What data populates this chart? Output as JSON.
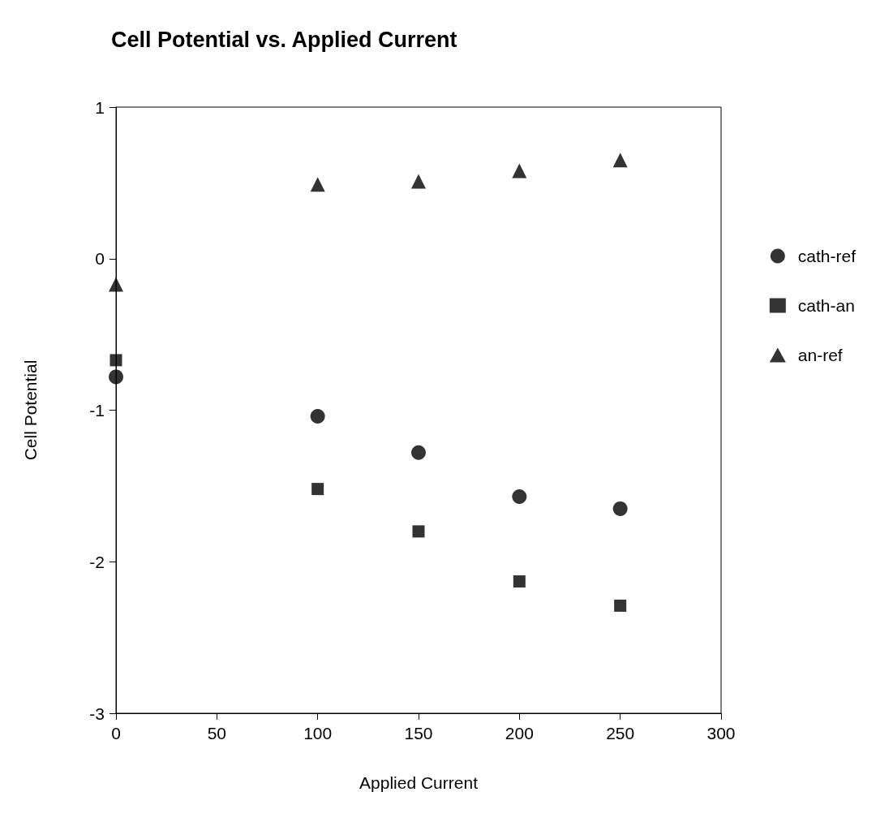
{
  "chart_data": {
    "type": "scatter",
    "title": "Cell Potential vs. Applied Current",
    "xlabel": "Applied Current",
    "ylabel": "Cell Potential",
    "x": [
      0,
      100,
      150,
      200,
      250
    ],
    "series": [
      {
        "name": "cath-ref",
        "color": "#000000",
        "marker": "circle",
        "values": [
          -0.78,
          -1.04,
          -1.28,
          -1.57,
          -1.65
        ]
      },
      {
        "name": "cath-an",
        "color": "#000000",
        "marker": "square",
        "values": [
          -0.67,
          -1.52,
          -1.8,
          -2.13,
          -2.29
        ]
      },
      {
        "name": "an-ref",
        "color": "#000000",
        "marker": "triangle",
        "values": [
          -0.17,
          0.49,
          0.51,
          0.58,
          0.65
        ]
      }
    ],
    "xlim": [
      0,
      300
    ],
    "xticks": [
      0,
      50,
      100,
      150,
      200,
      250,
      300
    ],
    "ylim": [
      -3,
      1
    ],
    "yticks": [
      -3,
      -2,
      -1,
      0,
      1
    ],
    "grid": false,
    "legend": "right"
  }
}
